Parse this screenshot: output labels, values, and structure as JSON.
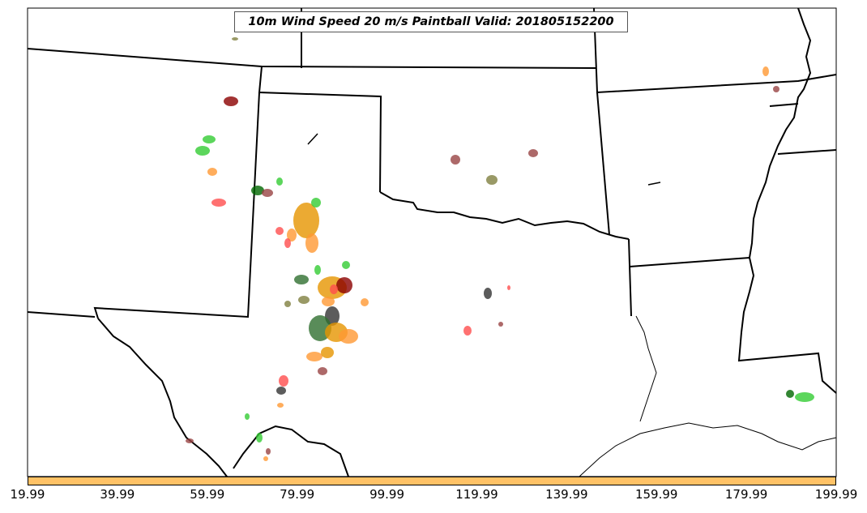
{
  "title": "10m Wind Speed 20 m/s Paintball Valid: 201805152200",
  "colorbar": {
    "fill_color": "#ffc266",
    "ticks": [
      "19.99",
      "39.99",
      "59.99",
      "79.99",
      "99.99",
      "119.99",
      "139.99",
      "159.99",
      "179.99",
      "199.99"
    ]
  },
  "member_colors": [
    "#ff4d4d",
    "#33cc33",
    "#006600",
    "#8b0000",
    "#ff9933",
    "#e69500",
    "#808040",
    "#994444",
    "#2f6f2f",
    "#333333"
  ]
}
